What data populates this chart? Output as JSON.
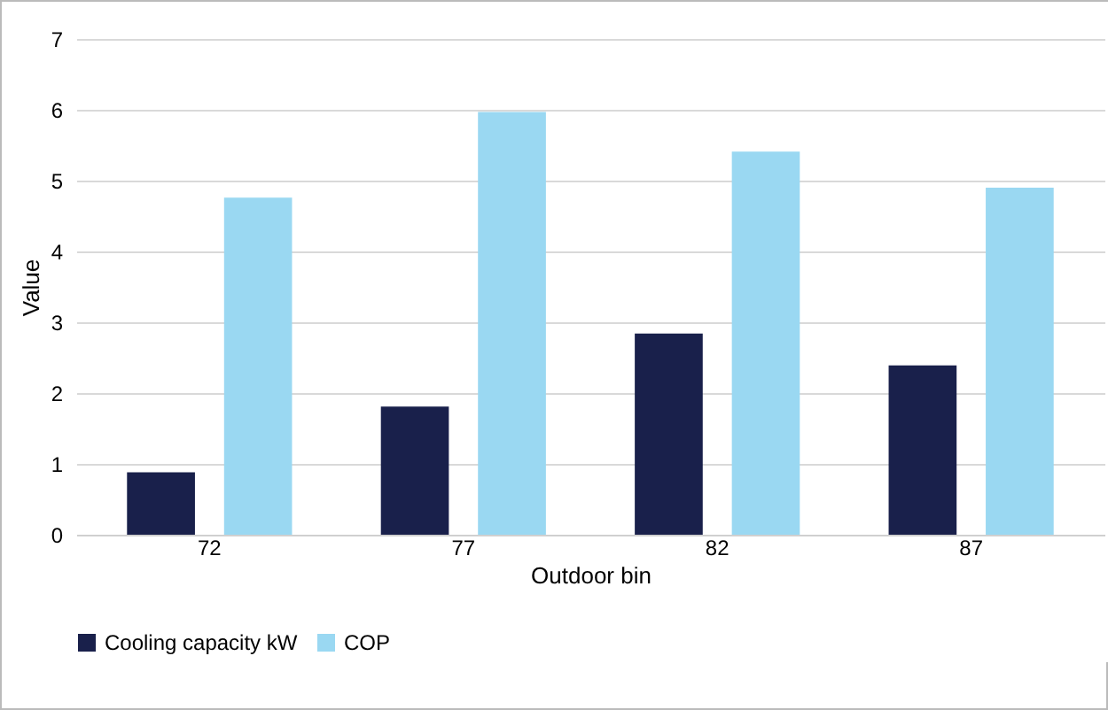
{
  "chart_data": {
    "type": "bar",
    "xlabel": "Outdoor bin",
    "ylabel": "Value",
    "categories": [
      "72",
      "77",
      "82",
      "87"
    ],
    "series": [
      {
        "name": "Cooling capacity kW",
        "color": "#19204b",
        "values": [
          0.88,
          1.81,
          2.84,
          2.39
        ]
      },
      {
        "name": "COP",
        "color": "#9ad8f2",
        "values": [
          4.76,
          5.97,
          5.41,
          4.9
        ]
      }
    ],
    "ylim": [
      0,
      7
    ],
    "yticks": [
      0,
      1,
      2,
      3,
      4,
      5,
      6,
      7
    ],
    "grid": "y",
    "legend": "bottom"
  }
}
